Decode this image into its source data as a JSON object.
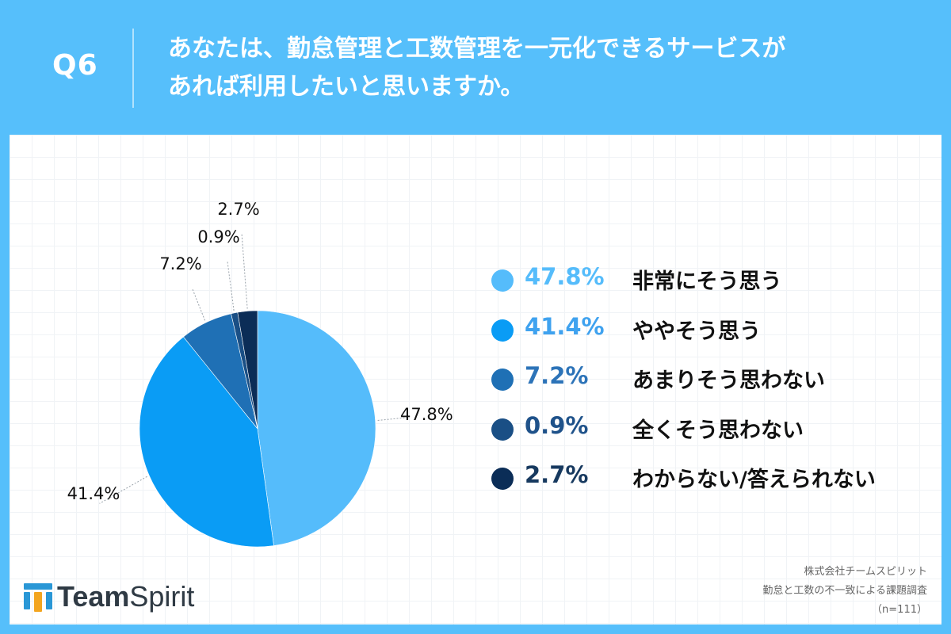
{
  "header": {
    "question_label": "Q6",
    "question_line1": "あなたは、勤怠管理と工数管理を一元化できるサービスが",
    "question_line2": "あれば利用したいと思いますか。"
  },
  "chart_data": {
    "type": "pie",
    "title": "",
    "slices": [
      {
        "label": "非常にそう思う",
        "value": 47.8,
        "display": "47.8%",
        "color": "#55bcfb"
      },
      {
        "label": "ややそう思う",
        "value": 41.4,
        "display": "41.4%",
        "color": "#0a9cf5"
      },
      {
        "label": "あまりそう思わない",
        "value": 7.2,
        "display": "7.2%",
        "color": "#1f70b5"
      },
      {
        "label": "全くそう思わない",
        "value": 0.9,
        "display": "0.9%",
        "color": "#1a4f85"
      },
      {
        "label": "わからない/答えられない",
        "value": 2.7,
        "display": "2.7%",
        "color": "#0b2d57"
      }
    ],
    "legend_position": "right"
  },
  "legend": {
    "pct_colors": [
      "#55bcfb",
      "#3fa2ef",
      "#2c73b8",
      "#1f528a",
      "#17395f"
    ]
  },
  "logo": {
    "text_bold": "Team",
    "text_regular": "Spirit"
  },
  "source": {
    "line1": "株式会社チームスピリット",
    "line2": "勤怠と工数の不一致による課題調査",
    "line3": "（n=111）"
  }
}
